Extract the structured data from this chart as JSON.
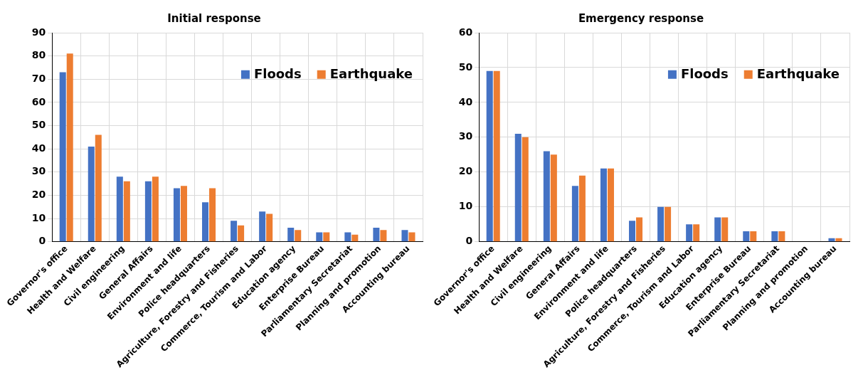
{
  "chart_data": [
    {
      "type": "bar",
      "title": "Initial response",
      "categories": [
        "Governor's office",
        "Health and Welfare",
        "Civil engineering",
        "General Affairs",
        "Environment and life",
        "Police headquarters",
        "Agriculture, Forestry and Fisheries",
        "Commerce, Tourism and Labor",
        "Education agency",
        "Enterprise Bureau",
        "Parliamentary Secretariat",
        "Planning and promotion",
        "Accounting bureau"
      ],
      "series": [
        {
          "name": "Floods",
          "color": "#4472c4",
          "values": [
            73,
            41,
            28,
            26,
            23,
            17,
            9,
            13,
            6,
            4,
            4,
            6,
            5
          ]
        },
        {
          "name": "Earthquake",
          "color": "#ed7d31",
          "values": [
            81,
            46,
            26,
            28,
            24,
            23,
            7,
            12,
            5,
            4,
            3,
            5,
            4
          ]
        }
      ],
      "ylim": [
        0,
        90
      ],
      "yticks": [
        0,
        10,
        20,
        30,
        40,
        50,
        60,
        70,
        80,
        90
      ],
      "grid": true,
      "legend": "top right"
    },
    {
      "type": "bar",
      "title": "Emergency response",
      "categories": [
        "Governor's office",
        "Health and Welfare",
        "Civil engineering",
        "General Affairs",
        "Environment and life",
        "Police headquarters",
        "Agriculture, Forestry and Fisheries",
        "Commerce, Tourism and Labor",
        "Education agency",
        "Enterprise Bureau",
        "Parliamentary Secretariat",
        "Planning and promotion",
        "Accounting bureau"
      ],
      "series": [
        {
          "name": "Floods",
          "color": "#4472c4",
          "values": [
            49,
            31,
            26,
            16,
            21,
            6,
            10,
            5,
            7,
            3,
            3,
            0,
            1
          ]
        },
        {
          "name": "Earthquake",
          "color": "#ed7d31",
          "values": [
            49,
            30,
            25,
            19,
            21,
            7,
            10,
            5,
            7,
            3,
            3,
            0,
            1
          ]
        }
      ],
      "ylim": [
        0,
        60
      ],
      "yticks": [
        0,
        10,
        20,
        30,
        40,
        50,
        60
      ],
      "grid": true,
      "legend": "top right"
    }
  ]
}
